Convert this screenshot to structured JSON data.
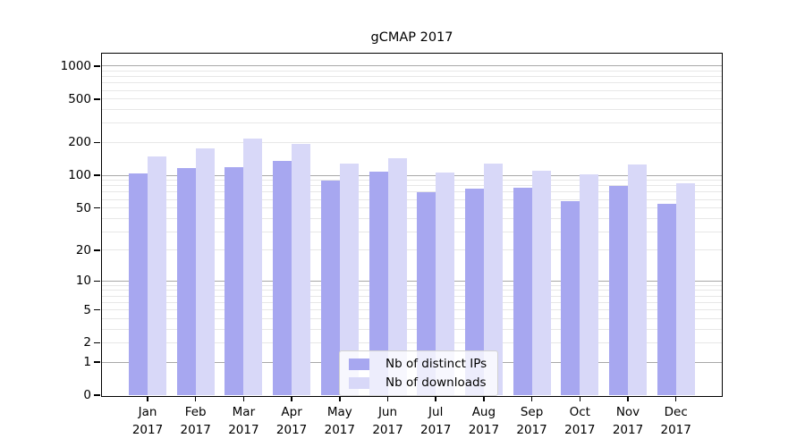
{
  "chart_data": {
    "type": "bar",
    "title": "gCMAP 2017",
    "categories": [
      "Jan",
      "Feb",
      "Mar",
      "Apr",
      "May",
      "Jun",
      "Jul",
      "Aug",
      "Sep",
      "Oct",
      "Nov",
      "Dec"
    ],
    "category_year": "2017",
    "series": [
      {
        "name": "Nb of distinct IPs",
        "color": "#a7a7f0",
        "values": [
          105,
          116,
          119,
          135,
          90,
          108,
          70,
          76,
          77,
          58,
          80,
          55
        ]
      },
      {
        "name": "Nb of downloads",
        "color": "#d8d8f8",
        "values": [
          148,
          176,
          216,
          193,
          128,
          143,
          106,
          128,
          111,
          102,
          126,
          84
        ]
      }
    ],
    "yscale": "log1p",
    "ylim": [
      0,
      1300
    ],
    "yticks": [
      0,
      1,
      2,
      5,
      10,
      20,
      50,
      100,
      200,
      500,
      1000
    ],
    "minor_yticks": [
      3,
      4,
      6,
      7,
      8,
      9,
      30,
      40,
      60,
      70,
      80,
      90,
      300,
      400,
      600,
      700,
      800,
      900
    ],
    "major_gridline_values": [
      1,
      10,
      100,
      1000
    ],
    "grid": true,
    "legend_position": "lower center"
  },
  "colors": {
    "major_grid": "#a8a8a8",
    "minor_grid": "#e7e7e7",
    "spine": "#000000",
    "text": "#000000"
  }
}
